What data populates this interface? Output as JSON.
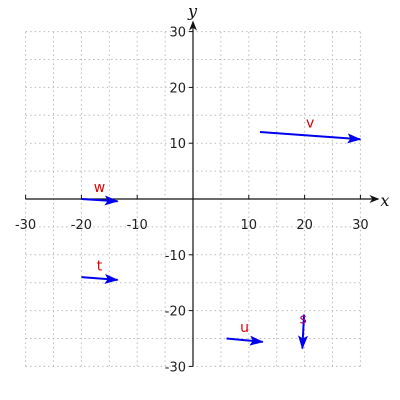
{
  "chart_data": {
    "type": "vector-field",
    "title": "",
    "xlabel": "x",
    "ylabel": "y",
    "xlim": [
      -30,
      30
    ],
    "ylim": [
      -30,
      30
    ],
    "xticks": [
      -30,
      -20,
      -10,
      10,
      20,
      30
    ],
    "yticks": [
      -30,
      -20,
      -10,
      10,
      20,
      30
    ],
    "grid": true,
    "vector_color": "#0000ee",
    "label_colors": {
      "red": "#dd0000",
      "purple": "#aa0066"
    },
    "vectors": [
      {
        "name": "v",
        "x0": 12,
        "y0": 12,
        "x1": 30,
        "y1": 10.7,
        "label_color": "#dd0000"
      },
      {
        "name": "w",
        "x0": -20,
        "y0": 0,
        "x1": -13.5,
        "y1": -0.4,
        "label_color": "#dd0000"
      },
      {
        "name": "t",
        "x0": -20,
        "y0": -14,
        "x1": -13.5,
        "y1": -14.5,
        "label_color": "#dd0000"
      },
      {
        "name": "u",
        "x0": 6,
        "y0": -25,
        "x1": 12.5,
        "y1": -25.6,
        "label_color": "#dd0000"
      },
      {
        "name": "s",
        "x0": 19.9,
        "y0": -20.7,
        "x1": 19.6,
        "y1": -26.8,
        "label_color": "#aa0066"
      }
    ]
  }
}
